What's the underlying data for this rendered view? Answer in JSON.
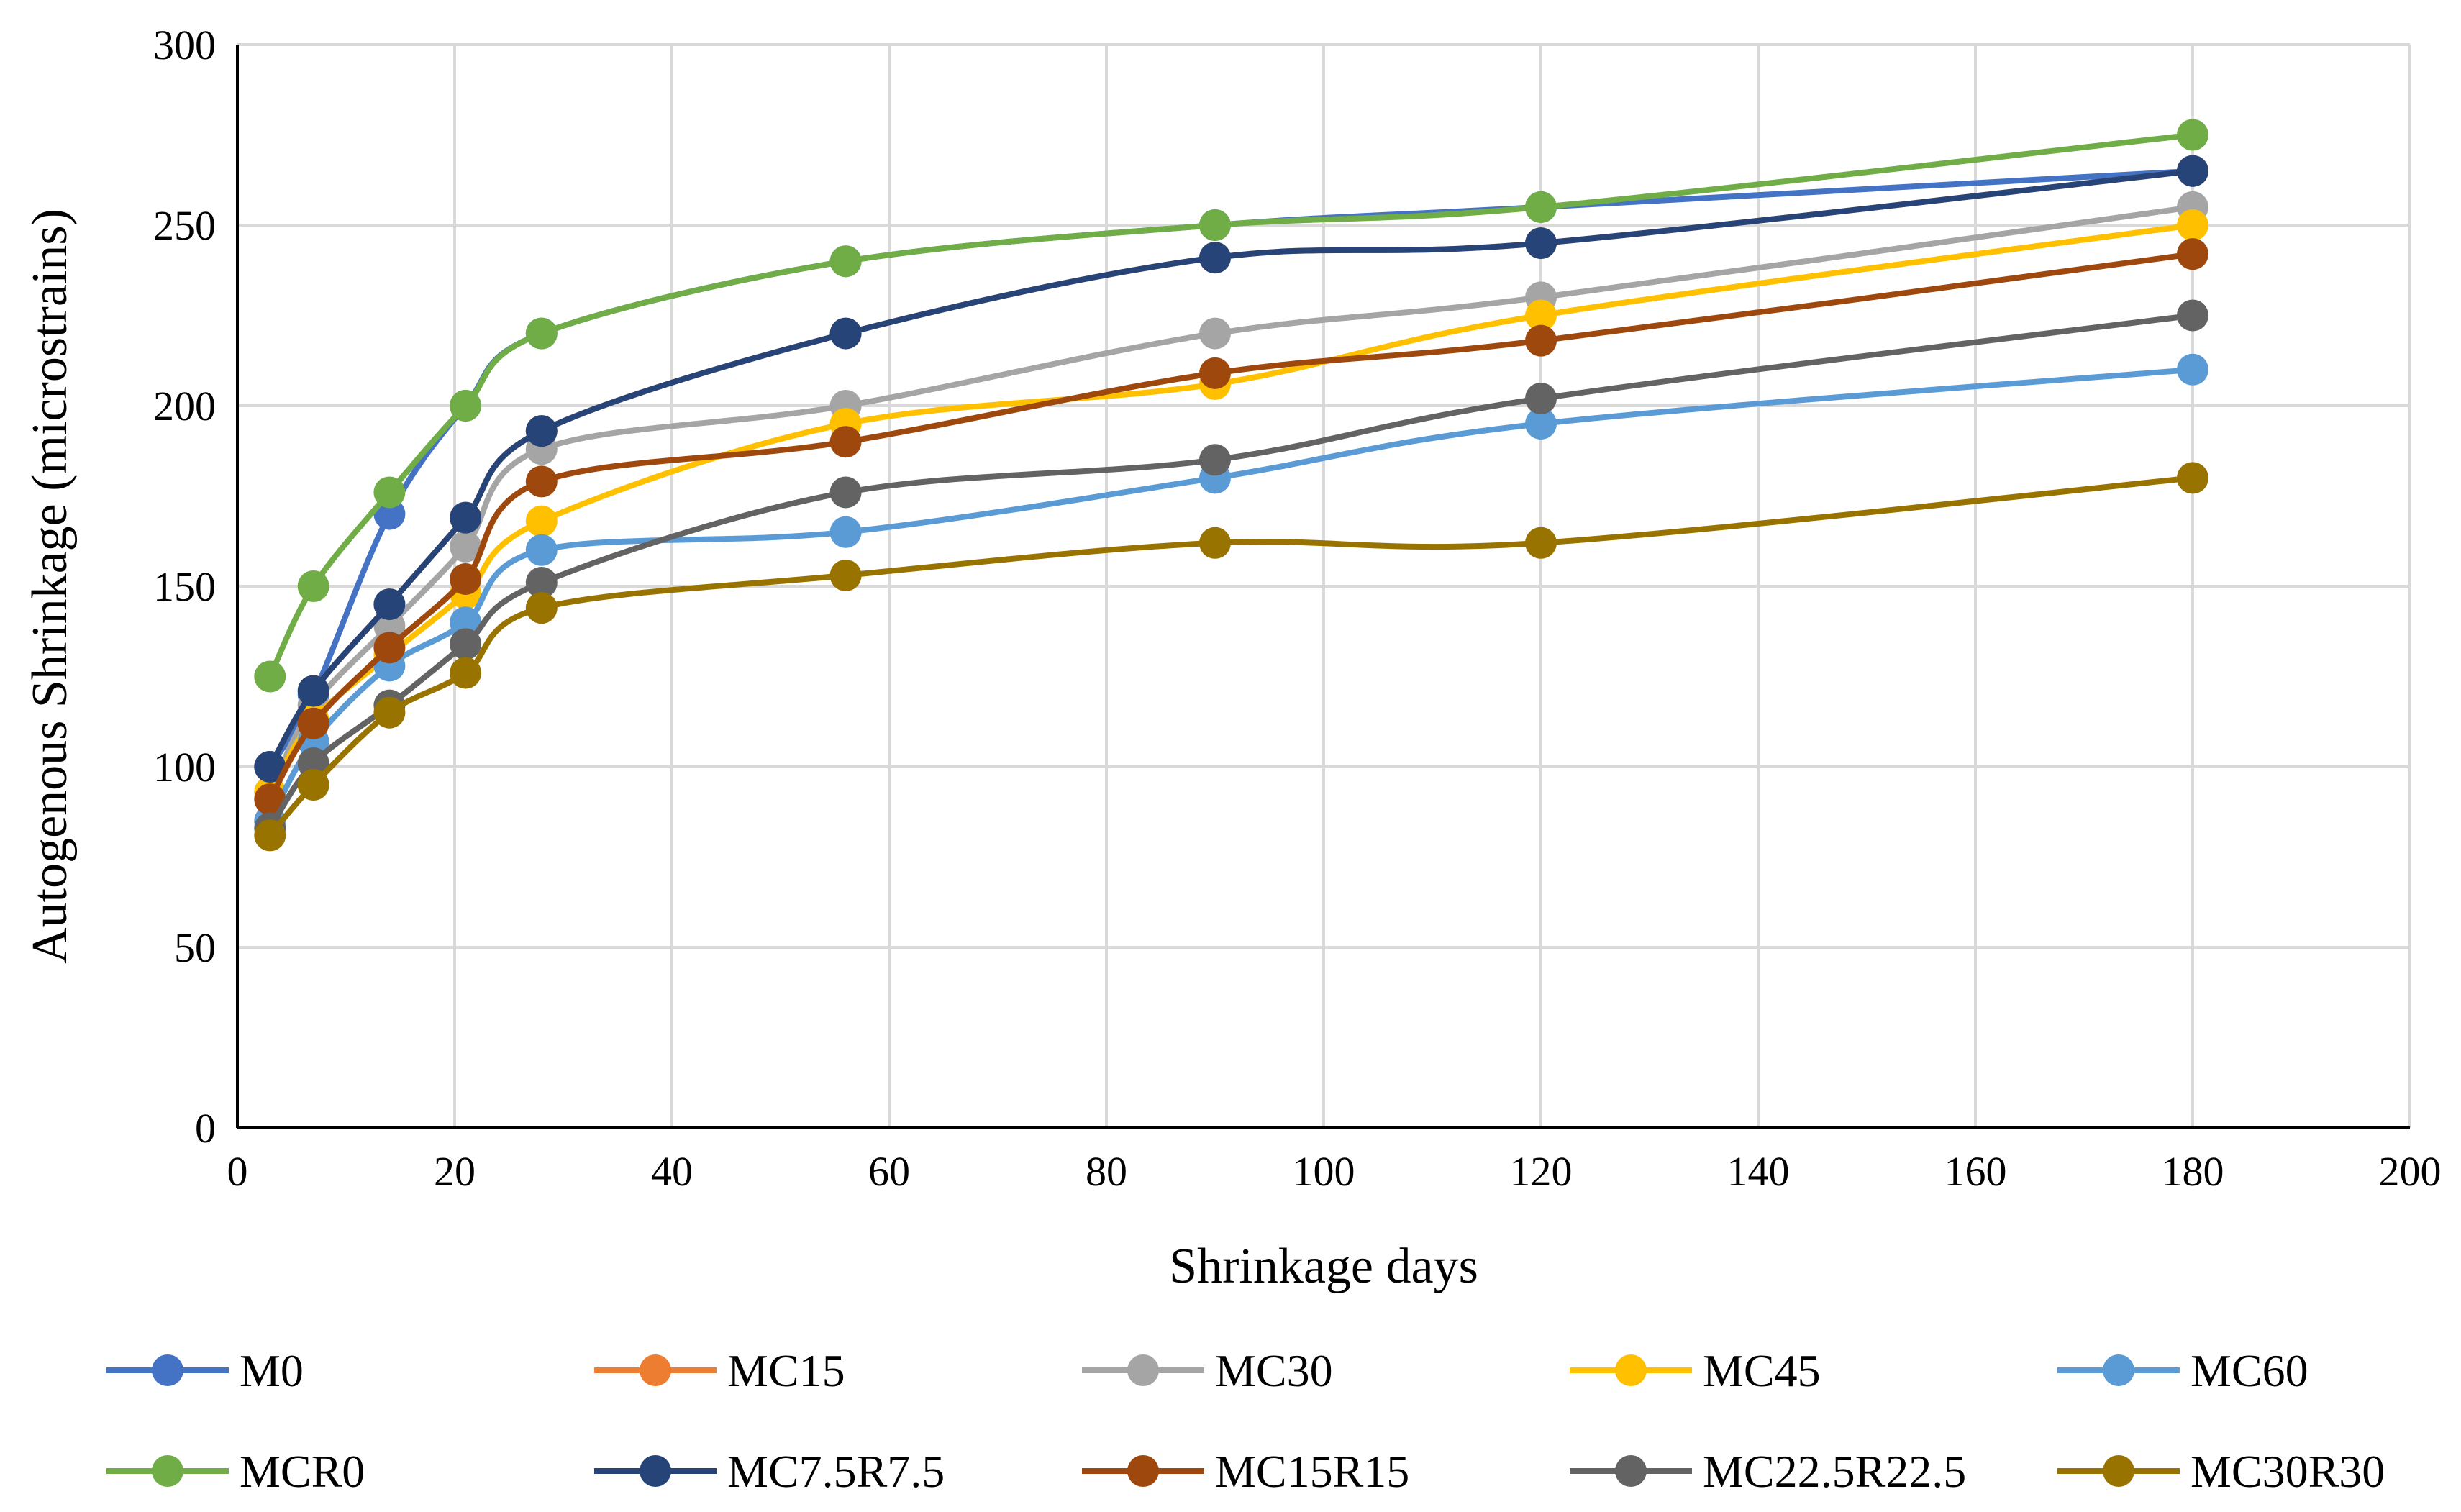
{
  "chart_data": {
    "type": "line",
    "title": "",
    "xlabel": "Shrinkage days",
    "ylabel": "Autogenous Shrinkage (microstrains)",
    "xlim": [
      0,
      200
    ],
    "ylim": [
      0,
      300
    ],
    "xticks": [
      0,
      20,
      40,
      60,
      80,
      100,
      120,
      140,
      160,
      180,
      200
    ],
    "yticks": [
      0,
      50,
      100,
      150,
      200,
      250,
      300
    ],
    "grid": true,
    "legend_position": "bottom",
    "x": [
      3,
      7,
      14,
      21,
      28,
      56,
      90,
      120,
      180
    ],
    "series": [
      {
        "name": "M0",
        "color": "#4472C4",
        "values": [
          100,
          120,
          170,
          200,
          220,
          240,
          250,
          255,
          265
        ]
      },
      {
        "name": "MC15",
        "color": "#ED7D31",
        "values": [
          100,
          121,
          145,
          169,
          193,
          220,
          241,
          245,
          265
        ]
      },
      {
        "name": "MC30",
        "color": "#A5A5A5",
        "values": [
          93,
          117,
          139,
          161,
          188,
          200,
          220,
          230,
          255
        ]
      },
      {
        "name": "MC45",
        "color": "#FFC000",
        "values": [
          93,
          113,
          131,
          148,
          168,
          195,
          206,
          225,
          250
        ]
      },
      {
        "name": "MC60",
        "color": "#5B9BD5",
        "values": [
          85,
          107,
          128,
          140,
          160,
          165,
          180,
          195,
          210
        ]
      },
      {
        "name": "MCR0",
        "color": "#70AD47",
        "values": [
          125,
          150,
          176,
          200,
          220,
          240,
          250,
          255,
          275
        ]
      },
      {
        "name": "MC7.5R7.5",
        "color": "#264478",
        "values": [
          100,
          121,
          145,
          169,
          193,
          220,
          241,
          245,
          265
        ]
      },
      {
        "name": "MC15R15",
        "color": "#9E480E",
        "values": [
          91,
          112,
          133,
          152,
          179,
          190,
          209,
          218,
          242
        ]
      },
      {
        "name": "MC22.5R22.5",
        "color": "#636363",
        "values": [
          83,
          101,
          117,
          134,
          151,
          176,
          185,
          202,
          225
        ]
      },
      {
        "name": "MC30R30",
        "color": "#997300",
        "values": [
          81,
          95,
          115,
          126,
          144,
          153,
          162,
          162,
          180
        ]
      }
    ]
  }
}
